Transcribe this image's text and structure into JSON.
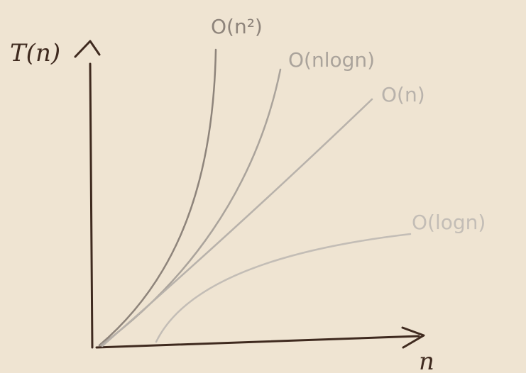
{
  "axes": {
    "y_label": "T(n)",
    "x_label": "n"
  },
  "colors": {
    "background": "#efe4d2",
    "axis": "#3f2a1f",
    "quadratic": "#8e847b",
    "nlogn": "#aaa39b",
    "linear": "#b8b2ab",
    "log": "#c3bdb6"
  },
  "curves": [
    {
      "key": "quadratic",
      "label": "O(n²)"
    },
    {
      "key": "nlogn",
      "label": "O(nlogn)"
    },
    {
      "key": "linear",
      "label": "O(n)"
    },
    {
      "key": "log",
      "label": "O(logn)"
    }
  ]
}
